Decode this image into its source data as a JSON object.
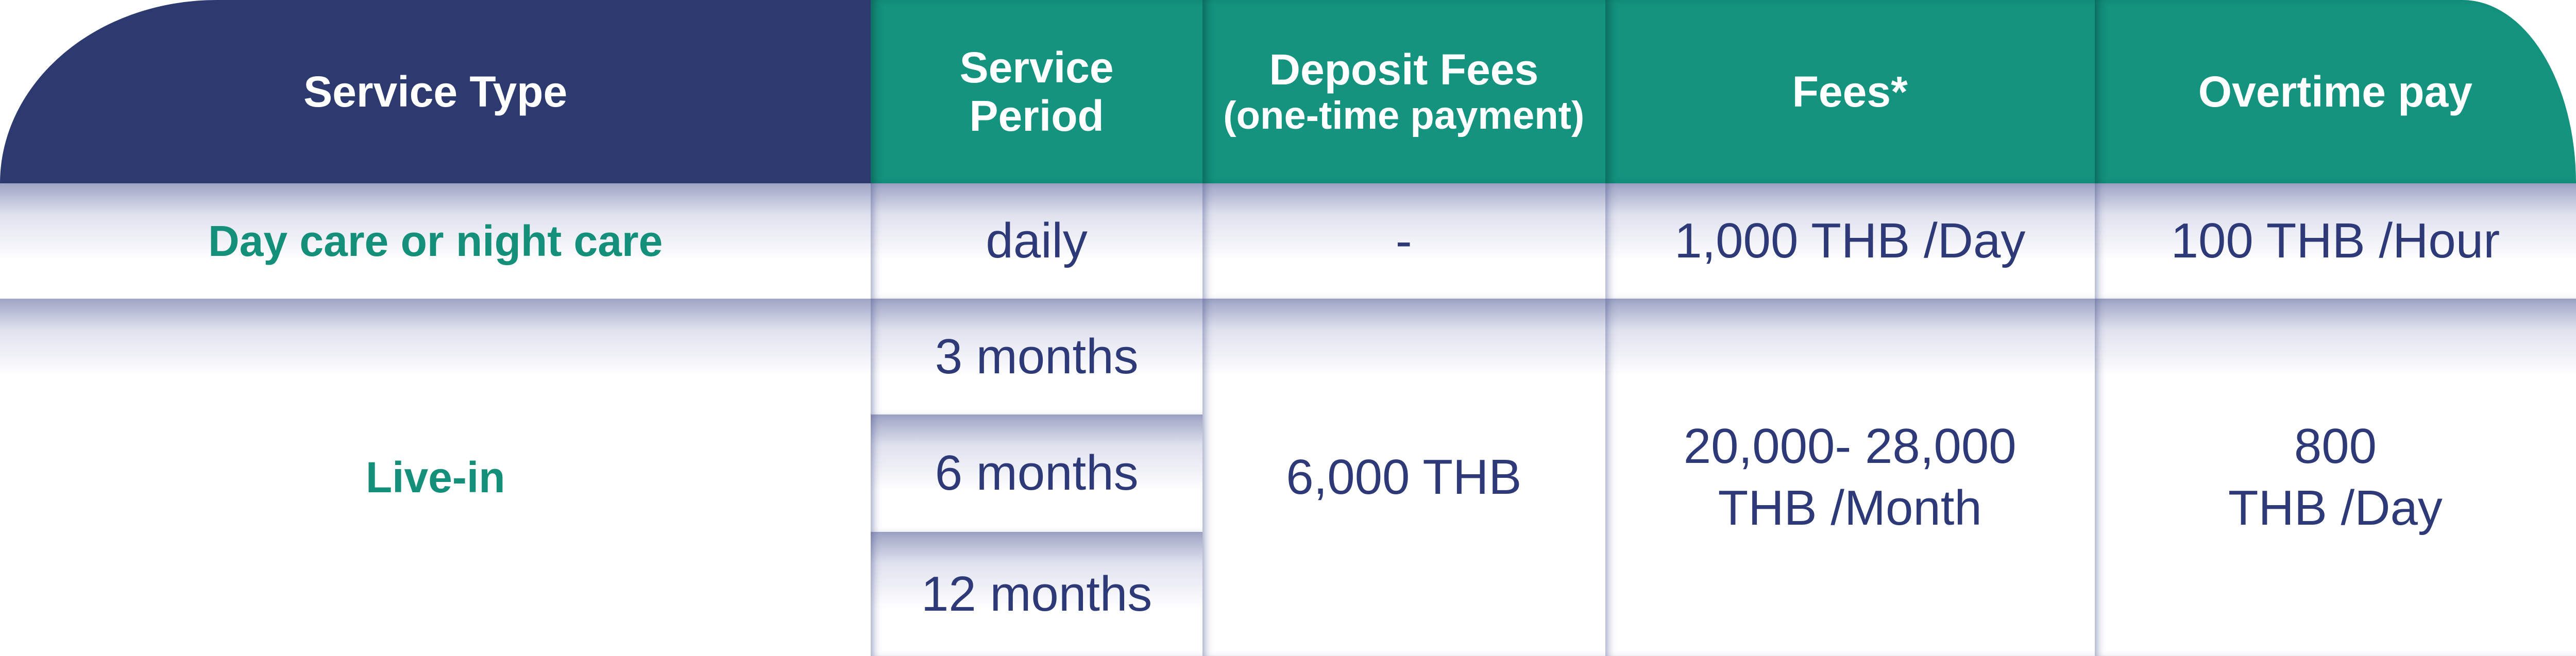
{
  "colors": {
    "header_navy": "#2d3a70",
    "header_teal": "#14937f",
    "text_navy": "#2e3a78",
    "text_green": "#14907a"
  },
  "headers": {
    "service_type": "Service Type",
    "service_period_1": "Service",
    "service_period_2": "Period",
    "deposit_1": "Deposit Fees",
    "deposit_2": "(one-time payment)",
    "fees": "Fees*",
    "overtime": "Overtime pay"
  },
  "rows": [
    {
      "type": "Day care or night care",
      "periods": [
        "daily"
      ],
      "deposit": "-",
      "fees": "1,000 THB /Day",
      "overtime": "100 THB /Hour"
    },
    {
      "type": "Live-in",
      "periods": [
        "3 months",
        "6 months",
        "12 months"
      ],
      "deposit": "6,000 THB",
      "fees_1": "20,000- 28,000",
      "fees_2": "THB /Month",
      "overtime_1": "800",
      "overtime_2": "THB /Day"
    }
  ]
}
